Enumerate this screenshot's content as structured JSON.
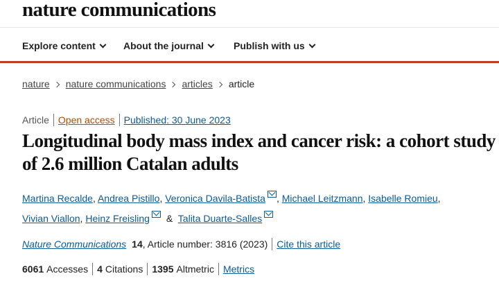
{
  "brand": {
    "name": "nature communications"
  },
  "nav": [
    {
      "label": "Explore content"
    },
    {
      "label": "About the journal"
    },
    {
      "label": "Publish with us"
    }
  ],
  "breadcrumb": [
    "nature",
    "nature communications",
    "articles",
    "article"
  ],
  "meta": {
    "type": "Article",
    "open_access": "Open access",
    "published": "Published: 30 June 2023"
  },
  "article": {
    "title": "Longitudinal body mass index and cancer risk: a cohort study of 2.6 million Catalan adults"
  },
  "authors": [
    "Martina Recalde",
    "Andrea Pistillo",
    "Veronica Davila-Batista",
    "Michael Leitzmann",
    "Isabelle Romieu",
    "Vivian Viallon",
    "Heinz Freisling",
    "Talita Duarte-Salles"
  ],
  "author_separator_comma": ",",
  "author_separator_amp": "&",
  "citation": {
    "journal": "Nature Communications",
    "volume": "14",
    "article_number": ", Article number: 3816 (2023)",
    "cite_label": "Cite this article"
  },
  "metrics": {
    "accesses_count": "6061",
    "accesses_label": "Accesses",
    "citations_count": "4",
    "citations_label": "Citations",
    "altmetric_count": "1395",
    "altmetric_label": "Altmetric",
    "metrics_link": "Metrics"
  },
  "colors": {
    "accent_red": "#c0392b",
    "link_blue": "#0b5a9a",
    "open_access_orange": "#b94a00"
  }
}
